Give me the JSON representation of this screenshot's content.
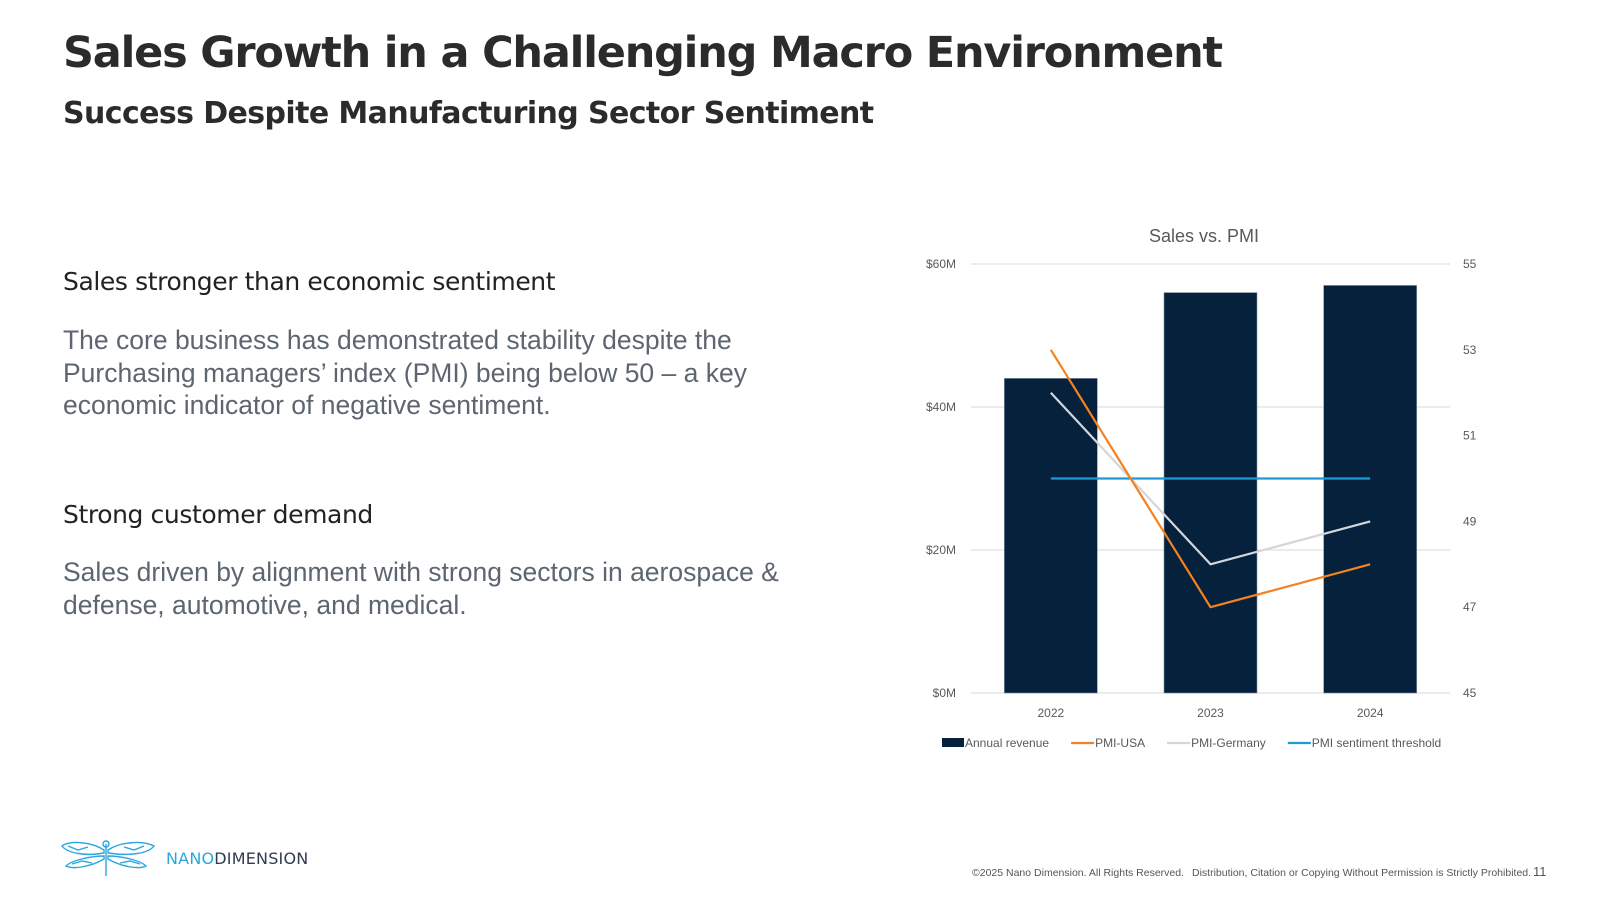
{
  "header": {
    "title": "Sales Growth in a Challenging Macro Environment",
    "subtitle": "Success Despite Manufacturing Sector Sentiment"
  },
  "sections": [
    {
      "heading": "Sales stronger than economic sentiment",
      "body": "The core business has demonstrated stability despite the Purchasing managers’ index (PMI)  being below 50 – a key economic indicator of negative sentiment."
    },
    {
      "heading": "Strong customer demand",
      "body": "Sales driven by alignment with strong sectors in aerospace & defense, automotive, and medical."
    }
  ],
  "colors": {
    "bar": "#06213b",
    "pmi_usa": "#f58220",
    "pmi_germany": "#d3d6da",
    "threshold": "#1e9ad6",
    "gridline": "#d9d9d9",
    "logo_blue": "#29a7de",
    "logo_dark": "#2f3b52"
  },
  "chart_data": {
    "type": "bar",
    "title": "Sales vs. PMI",
    "categories": [
      "2022",
      "2023",
      "2024"
    ],
    "series": [
      {
        "name": "Annual revenue",
        "kind": "bar",
        "axis": "left",
        "values": [
          44,
          56,
          57
        ],
        "unit": "$M"
      },
      {
        "name": "PMI-USA",
        "kind": "line",
        "axis": "right",
        "values": [
          53,
          47,
          48
        ]
      },
      {
        "name": "PMI-Germany",
        "kind": "line",
        "axis": "right",
        "values": [
          52,
          48,
          49
        ]
      },
      {
        "name": "PMI sentiment threshold",
        "kind": "line",
        "axis": "right",
        "values": [
          50,
          50,
          50
        ]
      }
    ],
    "left_axis": {
      "ylim": [
        0,
        60
      ],
      "ticks": [
        0,
        20,
        40,
        60
      ],
      "tick_labels": [
        "$0M",
        "$20M",
        "$40M",
        "$60M"
      ]
    },
    "right_axis": {
      "ylim": [
        45,
        55
      ],
      "ticks": [
        45,
        47,
        49,
        51,
        53,
        55
      ],
      "tick_labels": [
        "45",
        "47",
        "49",
        "51",
        "53",
        "55"
      ]
    },
    "xlabel": "",
    "ylabel": "",
    "grid": true,
    "legend_position": "bottom"
  },
  "logo": {
    "name_part1": "NANO",
    "name_part2": "DIMENSION"
  },
  "footer": {
    "copyright": "©2025 Nano Dimension. All Rights Reserved.",
    "notice": "Distribution, Citation or Copying Without Permission is Strictly Prohibited.",
    "page_number": "11"
  }
}
